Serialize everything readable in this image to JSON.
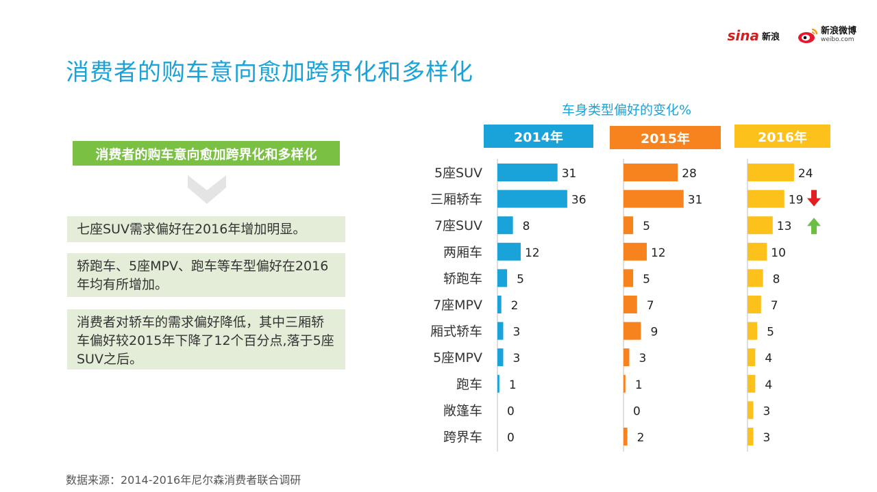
{
  "header": {
    "title": "消费者的购车意向愈加跨界化和多样化",
    "logo_sina_mark": "sina",
    "logo_sina_text": "新浪",
    "logo_weibo_text": "新浪微博",
    "logo_weibo_sub": "weibo.com"
  },
  "left": {
    "banner": "消费者的购车意向愈加跨界化和多样化",
    "points": [
      "七座SUV需求偏好在2016年增加明显。",
      "轿跑车、5座MPV、跑车等车型偏好在2016年均有所增加。",
      "消费者对轿车的需求偏好降低，其中三厢轿车偏好较2015年下降了12个百分点,落于5座SUV之后。"
    ]
  },
  "footer": {
    "source": "数据来源：2014-2016年尼尔森消费者联合调研"
  },
  "colors": {
    "blue": "#1aa3d8",
    "orange": "#f7831e",
    "yellow": "#fdc11c",
    "green": "#7ac143",
    "red": "#e02020",
    "up_green": "#6cbe45"
  },
  "chart_data": {
    "type": "bar",
    "orientation": "horizontal",
    "title": "车身类型偏好的变化%",
    "categories": [
      "5座SUV",
      "三厢轿车",
      "7座SUV",
      "两厢车",
      "轿跑车",
      "7座MPV",
      "厢式轿车",
      "5座MPV",
      "跑车",
      "敞篷车",
      "跨界车"
    ],
    "series": [
      {
        "name": "2014年",
        "color": "#1aa3d8",
        "values": [
          31,
          36,
          8,
          12,
          5,
          2,
          3,
          3,
          1,
          0,
          0
        ]
      },
      {
        "name": "2015年",
        "color": "#f7831e",
        "values": [
          28,
          31,
          5,
          12,
          5,
          7,
          9,
          3,
          1,
          0,
          2
        ]
      },
      {
        "name": "2016年",
        "color": "#fdc11c",
        "values": [
          24,
          19,
          13,
          10,
          8,
          7,
          5,
          4,
          4,
          3,
          3
        ]
      }
    ],
    "annotations": [
      {
        "series": "2016年",
        "category": "三厢轿车",
        "icon": "down-arrow",
        "color": "#e02020"
      },
      {
        "series": "2016年",
        "category": "7座SUV",
        "icon": "up-arrow",
        "color": "#6cbe45"
      }
    ]
  }
}
